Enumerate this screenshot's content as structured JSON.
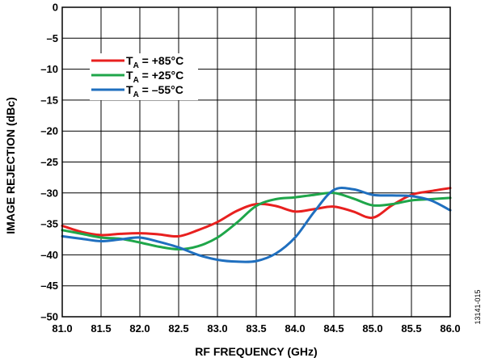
{
  "chart_data": {
    "type": "line",
    "xlabel": "RF FREQUENCY (GHz)",
    "ylabel": "IMAGE REJECTION (dBc)",
    "xlim": [
      81.0,
      86.0
    ],
    "ylim": [
      -50,
      0
    ],
    "xticks": [
      81.0,
      81.5,
      82.0,
      82.5,
      83.0,
      83.5,
      84.0,
      84.5,
      85.0,
      85.5,
      86.0
    ],
    "xtick_labels": [
      "81.0",
      "81.5",
      "82.0",
      "82.5",
      "83.0",
      "83.5",
      "84.0",
      "84.5",
      "85.0",
      "85.5",
      "86.0"
    ],
    "yticks": [
      0,
      -5,
      -10,
      -15,
      -20,
      -25,
      -30,
      -35,
      -40,
      -45,
      -50
    ],
    "ytick_labels": [
      "0",
      "–5",
      "–10",
      "–15",
      "–20",
      "–25",
      "–30",
      "–35",
      "–40",
      "–45",
      "–50"
    ],
    "grid": true,
    "legend_position": "top-left",
    "figure_id": "13141-015",
    "series": [
      {
        "name": "TA = +85°C",
        "legend": {
          "main": "T",
          "sub": "A",
          "rest": " = +85°C"
        },
        "color": "#e8201f",
        "x": [
          81.0,
          81.25,
          81.5,
          81.75,
          82.0,
          82.25,
          82.5,
          82.75,
          83.0,
          83.25,
          83.5,
          83.75,
          84.0,
          84.25,
          84.5,
          84.75,
          85.0,
          85.25,
          85.5,
          85.75,
          86.0
        ],
        "y": [
          -35.3,
          -36.3,
          -36.8,
          -36.6,
          -36.5,
          -36.7,
          -37.0,
          -36.0,
          -34.7,
          -32.9,
          -31.8,
          -32.1,
          -33.0,
          -32.6,
          -32.2,
          -33.0,
          -34.0,
          -32.0,
          -30.3,
          -29.7,
          -29.2
        ]
      },
      {
        "name": "TA = +25°C",
        "legend": {
          "main": "T",
          "sub": "A",
          "rest": " = +25°C"
        },
        "color": "#1fa64a",
        "x": [
          81.0,
          81.25,
          81.5,
          81.75,
          82.0,
          82.25,
          82.5,
          82.75,
          83.0,
          83.25,
          83.5,
          83.75,
          84.0,
          84.25,
          84.5,
          84.75,
          85.0,
          85.25,
          85.5,
          85.75,
          86.0
        ],
        "y": [
          -36.0,
          -36.6,
          -37.2,
          -37.4,
          -38.0,
          -38.7,
          -39.1,
          -38.6,
          -37.2,
          -34.8,
          -32.1,
          -31.0,
          -30.7,
          -30.3,
          -30.0,
          -30.9,
          -32.0,
          -31.8,
          -31.2,
          -31.0,
          -30.8
        ]
      },
      {
        "name": "TA = –55°C",
        "legend": {
          "main": "T",
          "sub": "A",
          "rest": " = –55°C"
        },
        "color": "#1f6fbf",
        "x": [
          81.0,
          81.25,
          81.5,
          81.75,
          82.0,
          82.25,
          82.5,
          82.75,
          83.0,
          83.25,
          83.5,
          83.75,
          84.0,
          84.25,
          84.5,
          84.75,
          85.0,
          85.25,
          85.5,
          85.75,
          86.0
        ],
        "y": [
          -37.0,
          -37.4,
          -37.8,
          -37.5,
          -37.2,
          -37.9,
          -38.8,
          -40.0,
          -40.8,
          -41.1,
          -41.0,
          -39.8,
          -37.2,
          -33.0,
          -29.5,
          -29.4,
          -30.3,
          -30.4,
          -30.5,
          -31.2,
          -32.8
        ]
      }
    ]
  }
}
